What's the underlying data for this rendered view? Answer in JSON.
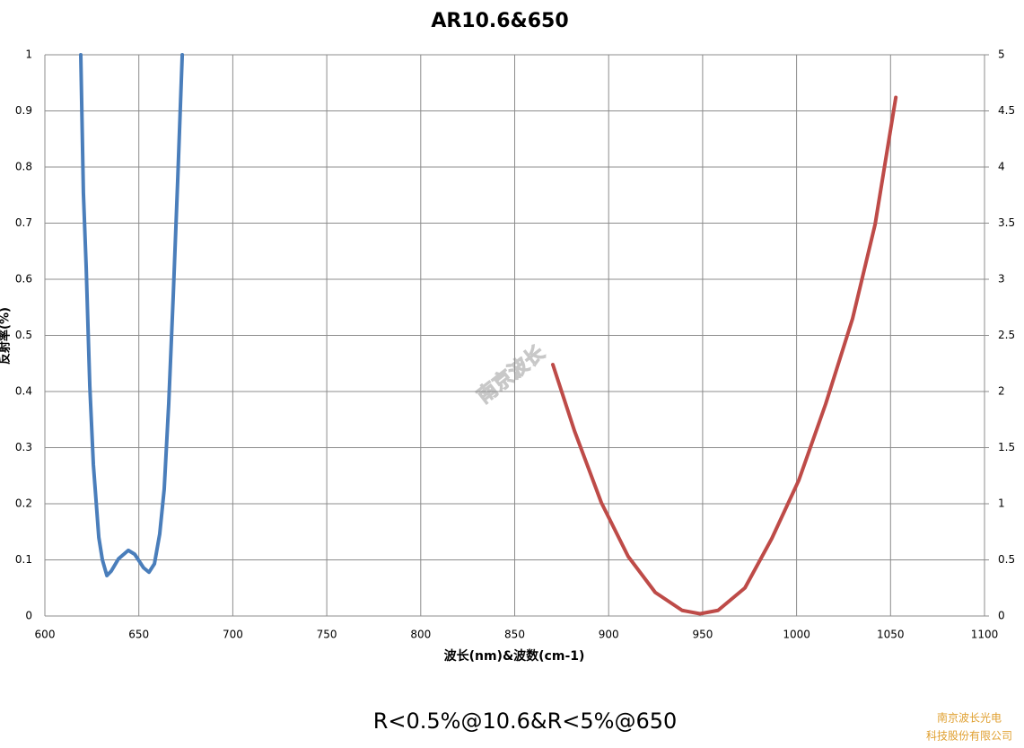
{
  "chart_data": {
    "type": "line",
    "title": "AR10.6&650",
    "xlabel": "波长(nm)&波数(cm-1)",
    "ylabel": "反射率(%)",
    "caption": "R<0.5%@10.6&R<5%@650",
    "watermark": "南京波长",
    "company": [
      "南京波长光电",
      "科技股份有限公司"
    ],
    "xlim": [
      600,
      1100
    ],
    "xticks": [
      600,
      650,
      700,
      750,
      800,
      850,
      900,
      950,
      1000,
      1050,
      1100
    ],
    "ylim": [
      0,
      1
    ],
    "yticks": [
      0,
      0.1,
      0.2,
      0.3,
      0.4,
      0.5,
      0.6,
      0.7,
      0.8,
      0.9,
      1
    ],
    "y2lim": [
      0,
      5
    ],
    "y2ticks": [
      0,
      0.5,
      1,
      1.5,
      2,
      2.5,
      3,
      3.5,
      4,
      4.5,
      5
    ],
    "grid": true,
    "series": [
      {
        "color": "#4a7ebb",
        "x": [
          619.1,
          620.5,
          622.0,
          623.9,
          625.8,
          628.7,
          630.6,
          633.0,
          635.3,
          639.2,
          644.4,
          647.8,
          652.5,
          655.4,
          658.3,
          661.1,
          663.5,
          665.9,
          668.3,
          670.7,
          673.1
        ],
        "values": [
          1.0,
          0.754,
          0.62,
          0.41,
          0.27,
          0.14,
          0.1,
          0.072,
          0.08,
          0.102,
          0.117,
          0.11,
          0.086,
          0.078,
          0.093,
          0.146,
          0.226,
          0.378,
          0.57,
          0.778,
          1.0
        ]
      },
      {
        "color": "#be4b48",
        "axis": "y2",
        "x": [
          870.3,
          881.8,
          896.1,
          910.4,
          924.8,
          939.1,
          948.6,
          958.2,
          972.5,
          986.8,
          1001.2,
          1015.5,
          1029.8,
          1041.8,
          1052.8
        ],
        "values": [
          2.24,
          1.65,
          1.01,
          0.53,
          0.21,
          0.05,
          0.02,
          0.05,
          0.25,
          0.69,
          1.21,
          1.89,
          2.65,
          3.49,
          4.62
        ]
      }
    ]
  }
}
